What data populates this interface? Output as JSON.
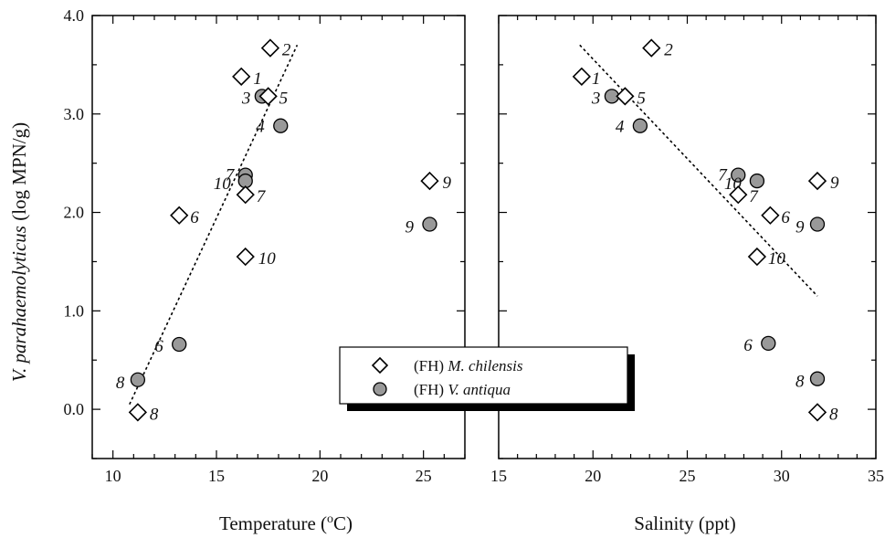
{
  "ylabel_italic": "V. parahaemolyticus",
  "ylabel_rest": " (log MPN/g)",
  "legend": {
    "items": [
      {
        "prefix": "(FH) ",
        "species": "M. chilensis",
        "marker": "diamond",
        "color": "#ffffff"
      },
      {
        "prefix": "(FH) ",
        "species": "V. antiqua",
        "marker": "circle",
        "color": "#999999"
      }
    ]
  },
  "chart_data": [
    {
      "type": "scatter",
      "xlabel": "Temperature (oC)",
      "xlim": [
        9,
        27
      ],
      "ylim": [
        -0.5,
        4.0
      ],
      "xticks": [
        10,
        15,
        20,
        25
      ],
      "yticks": [
        0.0,
        1.0,
        2.0,
        3.0,
        4.0
      ],
      "yticklabels": [
        "0.0",
        "1.0",
        "2.0",
        "3.0",
        "4.0"
      ],
      "grid": false,
      "series": [
        {
          "name": "(FH) M. chilensis",
          "marker": "diamond",
          "points": [
            {
              "x": 16.2,
              "y": 3.38,
              "label": "1"
            },
            {
              "x": 17.6,
              "y": 3.67,
              "label": "2"
            },
            {
              "x": 17.5,
              "y": 3.18,
              "label": "5"
            },
            {
              "x": 13.2,
              "y": 1.97,
              "label": "6"
            },
            {
              "x": 16.4,
              "y": 2.18,
              "label": "7"
            },
            {
              "x": 11.2,
              "y": -0.03,
              "label": "8"
            },
            {
              "x": 25.3,
              "y": 2.32,
              "label": "9"
            },
            {
              "x": 16.4,
              "y": 1.55,
              "label": "10"
            }
          ]
        },
        {
          "name": "(FH) V. antiqua",
          "marker": "circle",
          "points": [
            {
              "x": 17.2,
              "y": 3.18,
              "label": "3"
            },
            {
              "x": 18.1,
              "y": 2.88,
              "label": "4"
            },
            {
              "x": 13.2,
              "y": 0.66,
              "label": "6"
            },
            {
              "x": 16.4,
              "y": 2.38,
              "label": "7"
            },
            {
              "x": 11.2,
              "y": 0.3,
              "label": "8"
            },
            {
              "x": 25.3,
              "y": 1.88,
              "label": "9"
            },
            {
              "x": 16.4,
              "y": 2.32,
              "label": "10"
            }
          ]
        }
      ],
      "trendline": {
        "x": [
          10.8,
          18.9
        ],
        "y": [
          0.05,
          3.7
        ],
        "style": "dotted"
      }
    },
    {
      "type": "scatter",
      "xlabel": "Salinity (ppt)",
      "xlim": [
        15,
        35
      ],
      "ylim": [
        -0.5,
        4.0
      ],
      "xticks": [
        15,
        20,
        25,
        30,
        35
      ],
      "grid": false,
      "series": [
        {
          "name": "(FH) M. chilensis",
          "marker": "diamond",
          "points": [
            {
              "x": 19.4,
              "y": 3.38,
              "label": "1"
            },
            {
              "x": 23.1,
              "y": 3.67,
              "label": "2"
            },
            {
              "x": 21.7,
              "y": 3.18,
              "label": "5"
            },
            {
              "x": 29.4,
              "y": 1.97,
              "label": "6"
            },
            {
              "x": 27.7,
              "y": 2.18,
              "label": "7"
            },
            {
              "x": 31.9,
              "y": -0.03,
              "label": "8"
            },
            {
              "x": 31.9,
              "y": 2.32,
              "label": "9"
            },
            {
              "x": 28.7,
              "y": 1.55,
              "label": "10"
            }
          ]
        },
        {
          "name": "(FH) V. antiqua",
          "marker": "circle",
          "points": [
            {
              "x": 21.0,
              "y": 3.18,
              "label": "3"
            },
            {
              "x": 22.5,
              "y": 2.88,
              "label": "4"
            },
            {
              "x": 29.3,
              "y": 0.67,
              "label": "6"
            },
            {
              "x": 27.7,
              "y": 2.38,
              "label": "7"
            },
            {
              "x": 31.9,
              "y": 0.31,
              "label": "8"
            },
            {
              "x": 31.9,
              "y": 1.88,
              "label": "9"
            },
            {
              "x": 28.7,
              "y": 2.32,
              "label": "10"
            }
          ]
        }
      ],
      "trendline": {
        "x": [
          19.3,
          31.9
        ],
        "y": [
          3.7,
          1.15
        ],
        "style": "dotted"
      }
    }
  ]
}
